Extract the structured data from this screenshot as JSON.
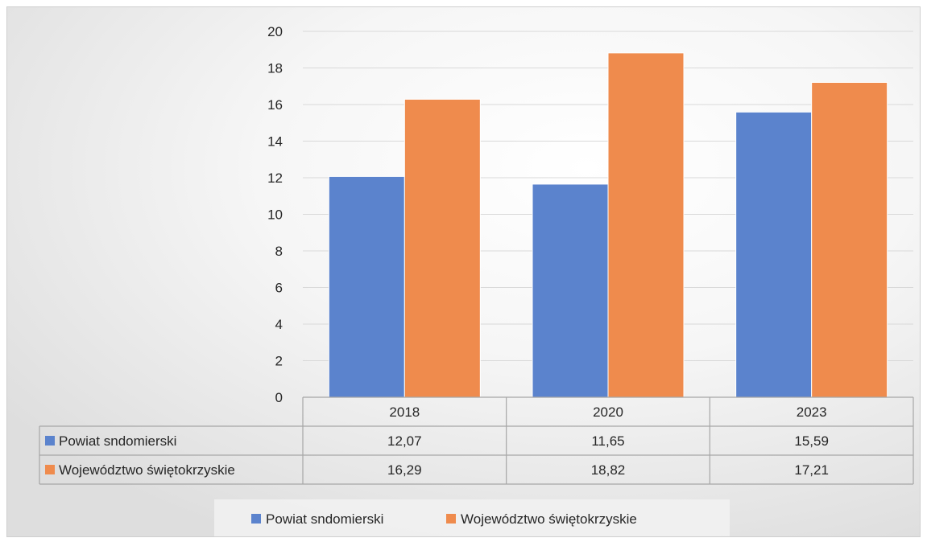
{
  "colors": {
    "series_0": "#5b83cd",
    "series_1": "#ef8b4d",
    "gridline": "#d9d9d9",
    "table_border": "#a6a6a6",
    "text": "#262626"
  },
  "chart_data": {
    "type": "bar",
    "categories": [
      "2018",
      "2020",
      "2023"
    ],
    "series": [
      {
        "name": "Powiat sndomierski",
        "values": [
          12.07,
          11.65,
          15.59
        ],
        "value_labels": [
          "12,07",
          "11,65",
          "15,59"
        ]
      },
      {
        "name": "Województwo świętokrzyskie",
        "values": [
          16.29,
          18.82,
          17.21
        ],
        "value_labels": [
          "16,29",
          "18,82",
          "17,21"
        ]
      }
    ],
    "ylim": [
      0,
      20
    ],
    "yticks": [
      0,
      2,
      4,
      6,
      8,
      10,
      12,
      14,
      16,
      18,
      20
    ],
    "grid": true,
    "data_table": true,
    "legend_position": "bottom"
  }
}
